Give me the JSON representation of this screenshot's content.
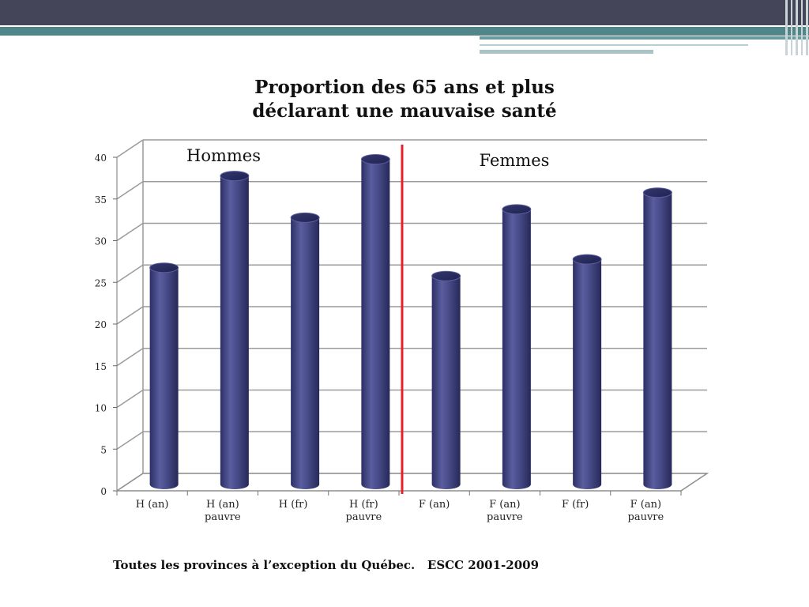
{
  "title": {
    "line1": "Proportion des 65 ans et plus",
    "line2": "déclarant une mauvaise santé"
  },
  "footnote": "Toutes les provinces à l’exception du Québec.   ESCC 2001-2009",
  "colors": {
    "header": "#444558",
    "accent": "#50868a",
    "bar": "#434680",
    "divider": "#e8202a"
  },
  "chart_data": {
    "type": "bar",
    "categories": [
      [
        "H (an)"
      ],
      [
        "H (an)",
        "pauvre"
      ],
      [
        "H (fr)"
      ],
      [
        "H (fr)",
        "pauvre"
      ],
      [
        "F (an)"
      ],
      [
        "F (an)",
        "pauvre"
      ],
      [
        "F (fr)"
      ],
      [
        "F (an)",
        "pauvre"
      ]
    ],
    "values": [
      26,
      37,
      32,
      39,
      25,
      33,
      27,
      35
    ],
    "ylim": [
      0,
      40
    ],
    "yticks": [
      0,
      5,
      10,
      15,
      20,
      25,
      30,
      35,
      40
    ],
    "grid": true,
    "group_labels": [
      "Hommes",
      "Femmes"
    ]
  }
}
